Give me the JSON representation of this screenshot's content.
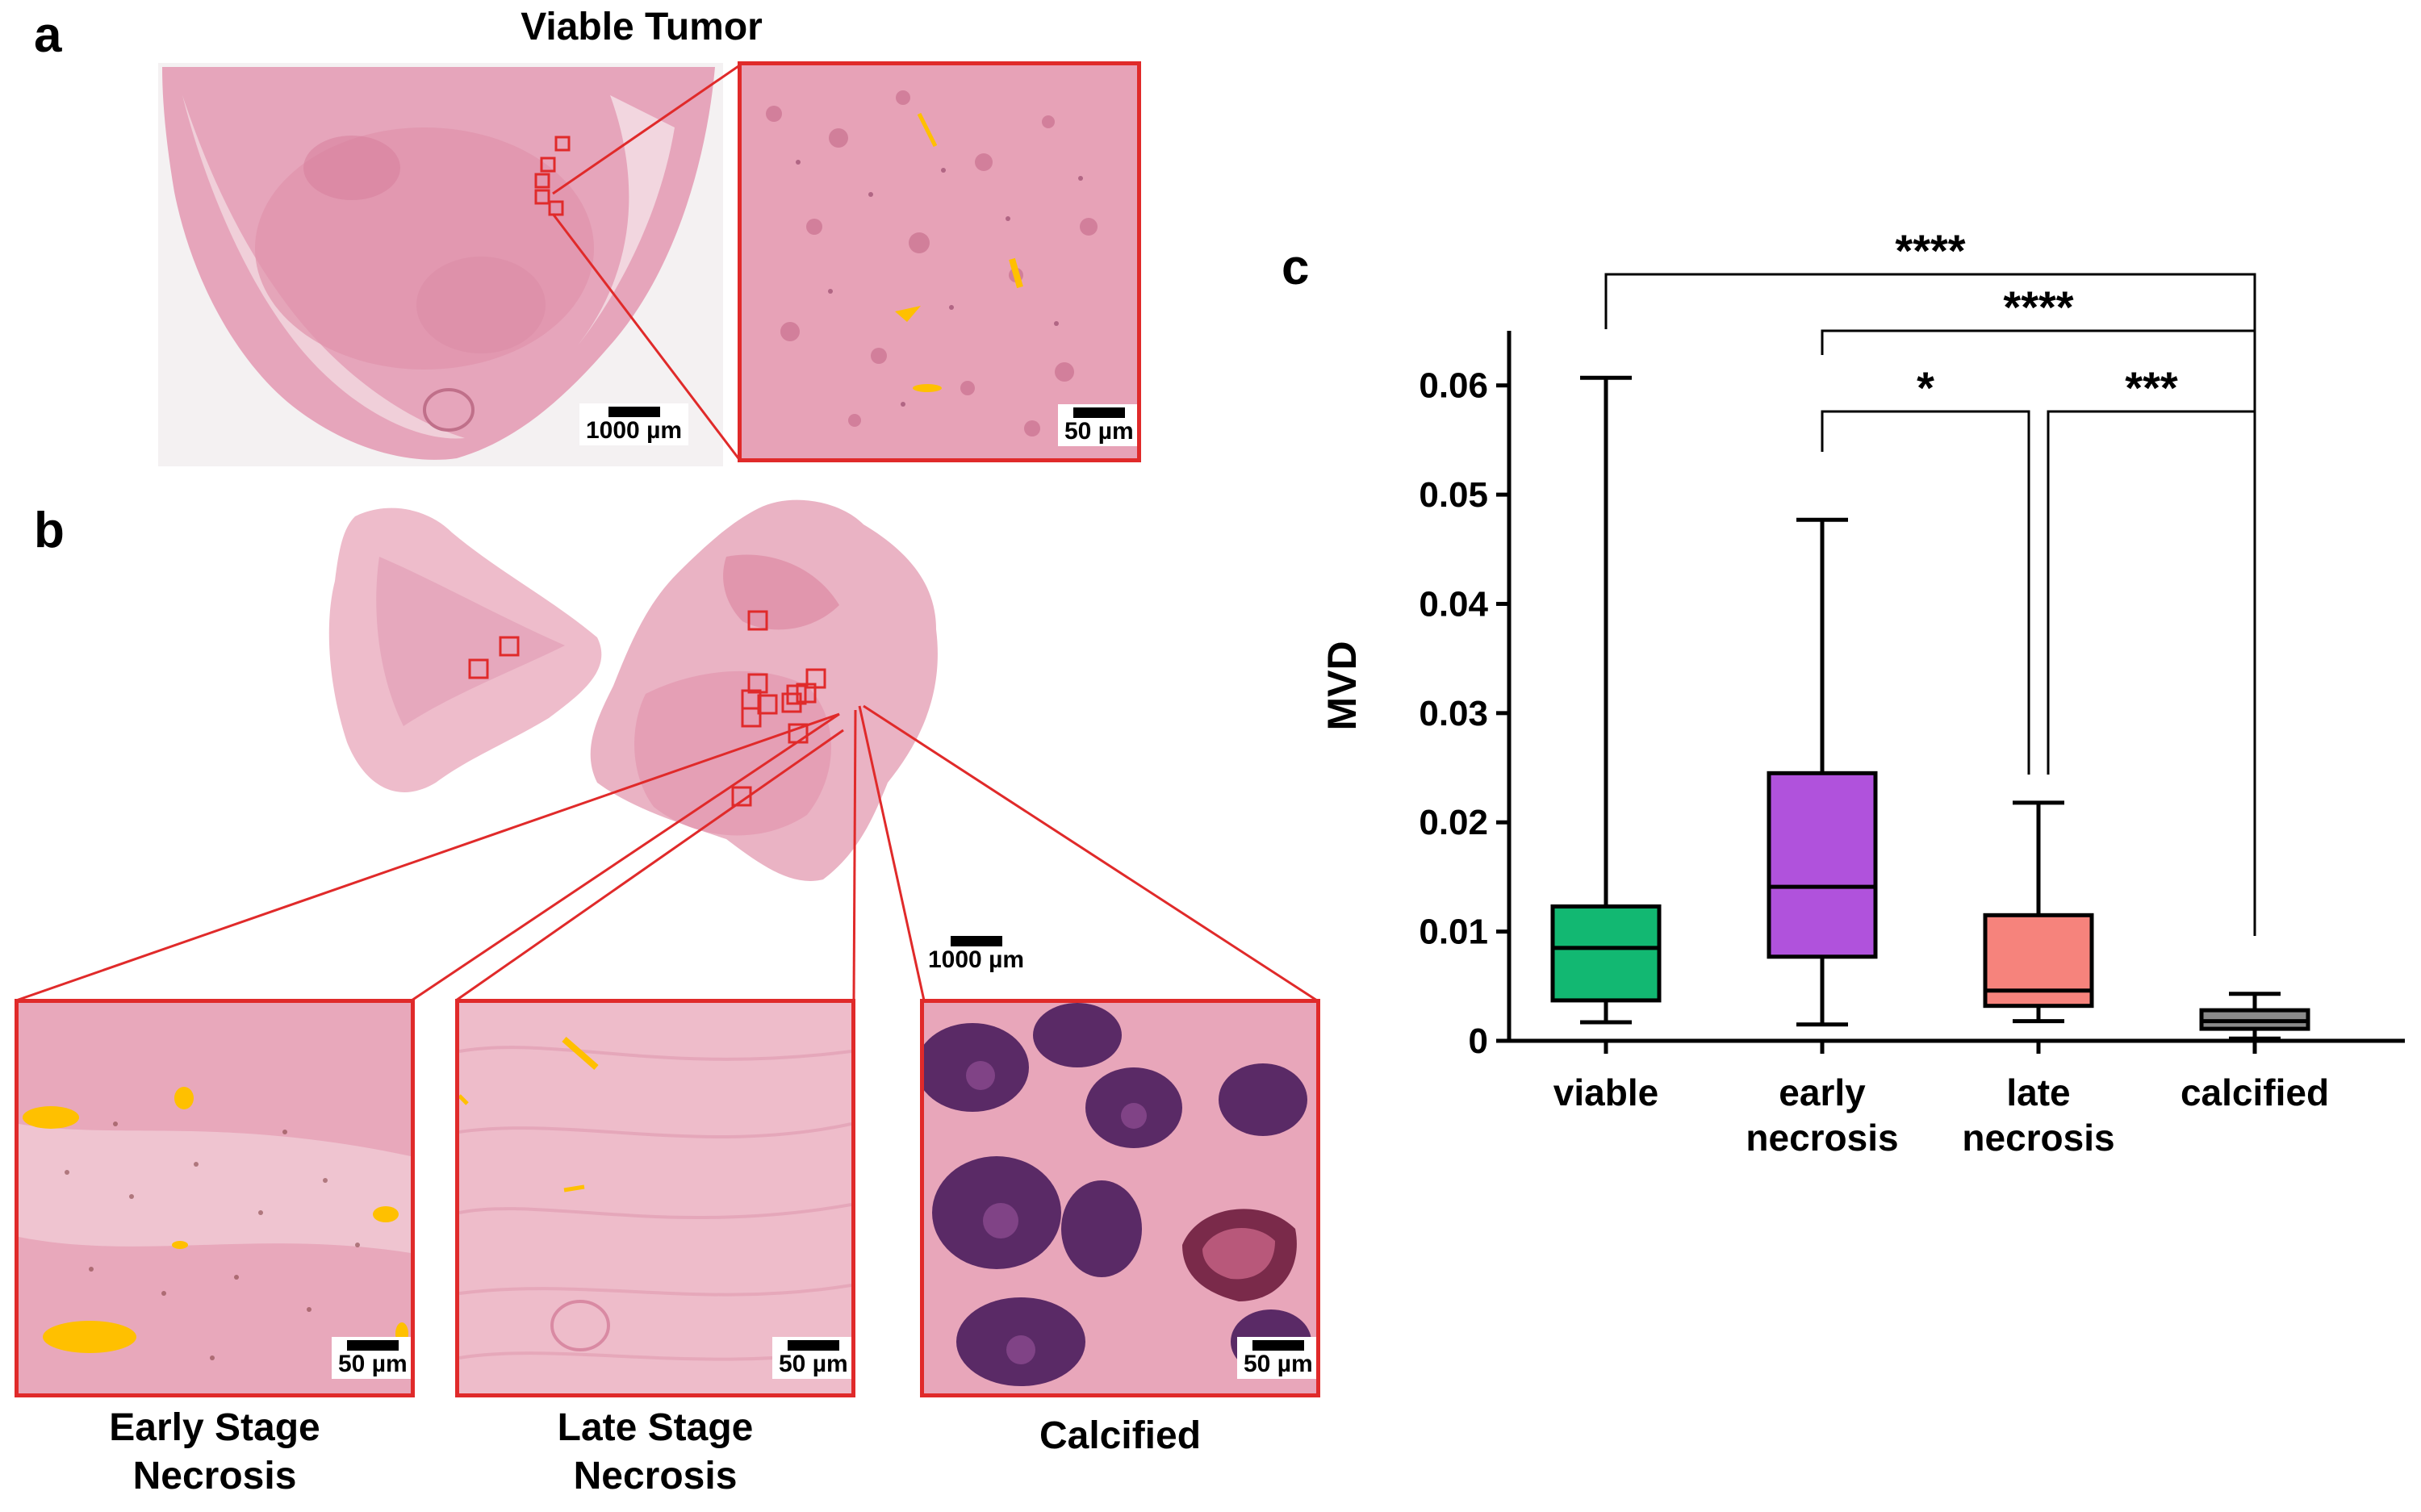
{
  "panels": {
    "a": {
      "letter": "a",
      "title": "Viable Tumor",
      "overview_scale": "1000 µm",
      "zoom_scale": "50 µm"
    },
    "b": {
      "letter": "b",
      "overview_scale": "1000 µm",
      "insets": [
        {
          "caption_line1": "Early Stage",
          "caption_line2": "Necrosis",
          "scale": "50 µm"
        },
        {
          "caption_line1": "Late Stage",
          "caption_line2": "Necrosis",
          "scale": "50 µm"
        },
        {
          "caption_line1": "Calcified",
          "caption_line2": "",
          "scale": "50 µm"
        }
      ]
    },
    "c": {
      "letter": "c"
    }
  },
  "colors": {
    "highlight_frame": "#e02a2a",
    "vessel_mask": "#ffc000",
    "tissue_pink": "#e8a6b8"
  },
  "chart_data": {
    "type": "box",
    "ylabel": "MVD",
    "ylim": [
      0,
      0.065
    ],
    "yticks": [
      "0",
      "0.01",
      "0.02",
      "0.03",
      "0.04",
      "0.05",
      "0.06"
    ],
    "categories": [
      {
        "line1": "viable",
        "line2": ""
      },
      {
        "line1": "early",
        "line2": "necrosis"
      },
      {
        "line1": "late",
        "line2": "necrosis"
      },
      {
        "line1": "calcified",
        "line2": ""
      }
    ],
    "boxes": [
      {
        "min": 0.0017,
        "q1": 0.0037,
        "median": 0.0085,
        "q3": 0.0123,
        "max": 0.0607,
        "color": "#12b872"
      },
      {
        "min": 0.0015,
        "q1": 0.0077,
        "median": 0.0141,
        "q3": 0.0245,
        "max": 0.0477,
        "color": "#b052dc"
      },
      {
        "min": 0.0018,
        "q1": 0.0032,
        "median": 0.0046,
        "q3": 0.0115,
        "max": 0.0218,
        "color": "#f6837c"
      },
      {
        "min": 0.0002,
        "q1": 0.0011,
        "median": 0.0018,
        "q3": 0.0028,
        "max": 0.0043,
        "color": "#8a8a8a"
      }
    ],
    "significance": [
      {
        "from": 0,
        "to": 3,
        "label": "****"
      },
      {
        "from": 1,
        "to": 3,
        "label": "****"
      },
      {
        "from": 1,
        "to": 2,
        "label": "*"
      },
      {
        "from": 2,
        "to": 3,
        "label": "***"
      }
    ]
  }
}
